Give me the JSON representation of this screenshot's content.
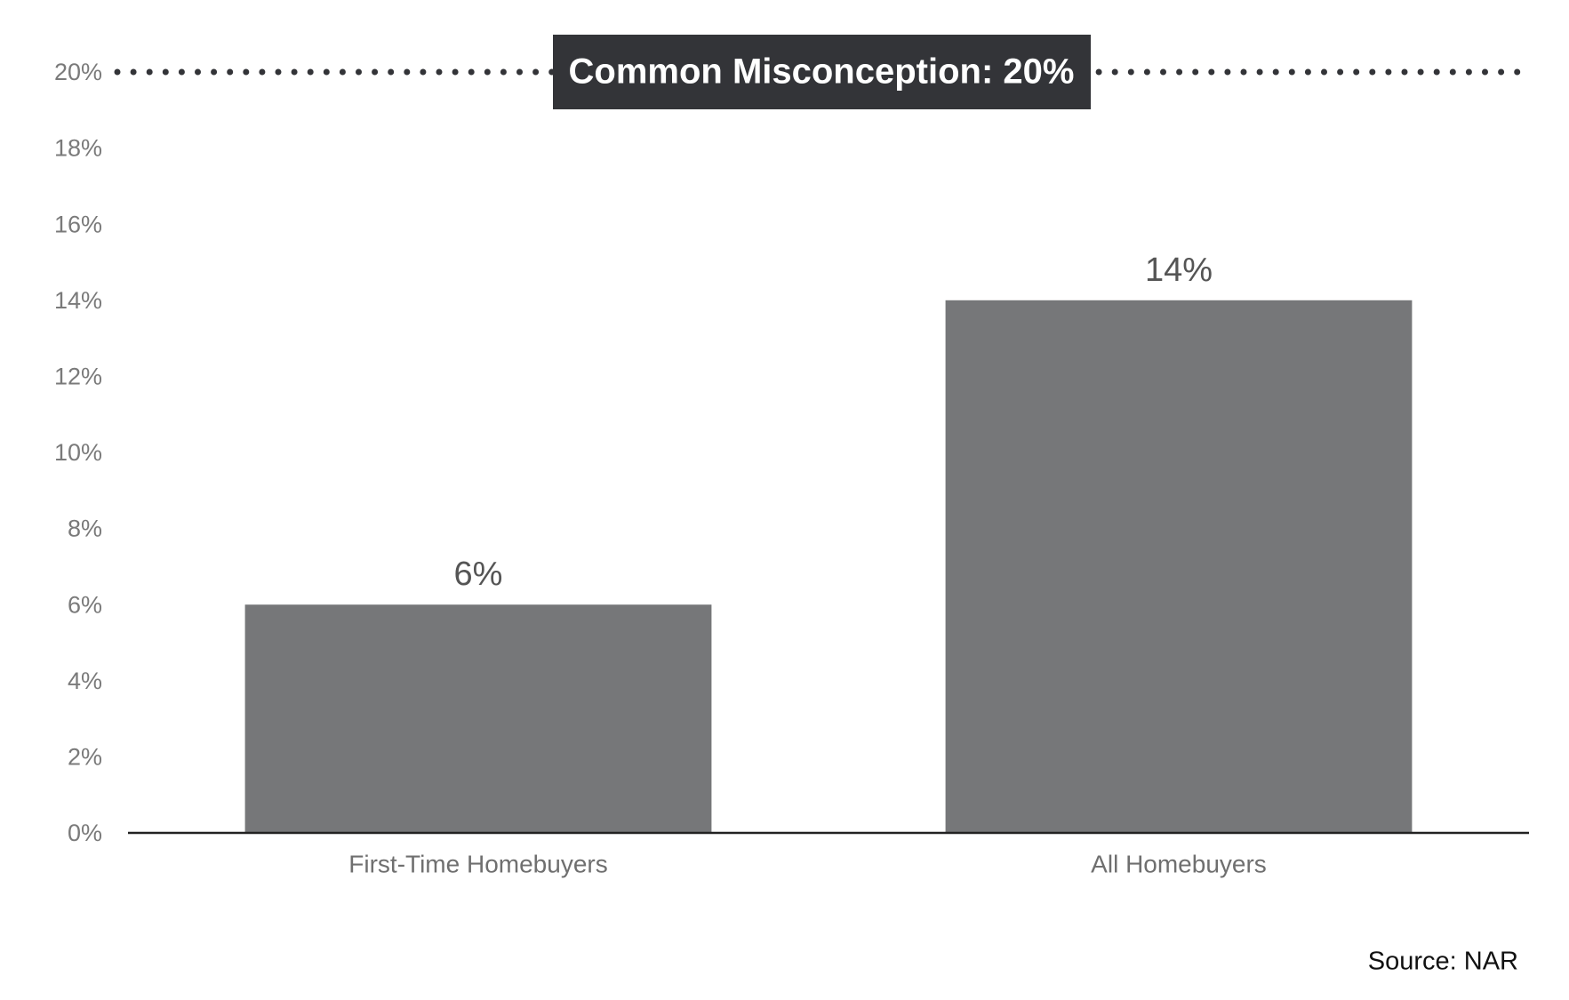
{
  "chart_data": {
    "type": "bar",
    "categories": [
      "First-Time Homebuyers",
      "All Homebuyers"
    ],
    "values": [
      6,
      14
    ],
    "value_labels": [
      "6%",
      "14%"
    ],
    "color": "#767779",
    "ylim": [
      0,
      20
    ],
    "yticks": [
      {
        "value": 0,
        "label": "0%"
      },
      {
        "value": 2,
        "label": "2%"
      },
      {
        "value": 4,
        "label": "4%"
      },
      {
        "value": 6,
        "label": "6%"
      },
      {
        "value": 8,
        "label": "8%"
      },
      {
        "value": 10,
        "label": "10%"
      },
      {
        "value": 12,
        "label": "12%"
      },
      {
        "value": 14,
        "label": "14%"
      },
      {
        "value": 16,
        "label": "16%"
      },
      {
        "value": 18,
        "label": "18%"
      },
      {
        "value": 20,
        "label": "20%"
      }
    ],
    "reference_line": {
      "value": 20,
      "label": "Common Misconception: 20%",
      "color": "#333438"
    },
    "source": "Source: NAR"
  }
}
